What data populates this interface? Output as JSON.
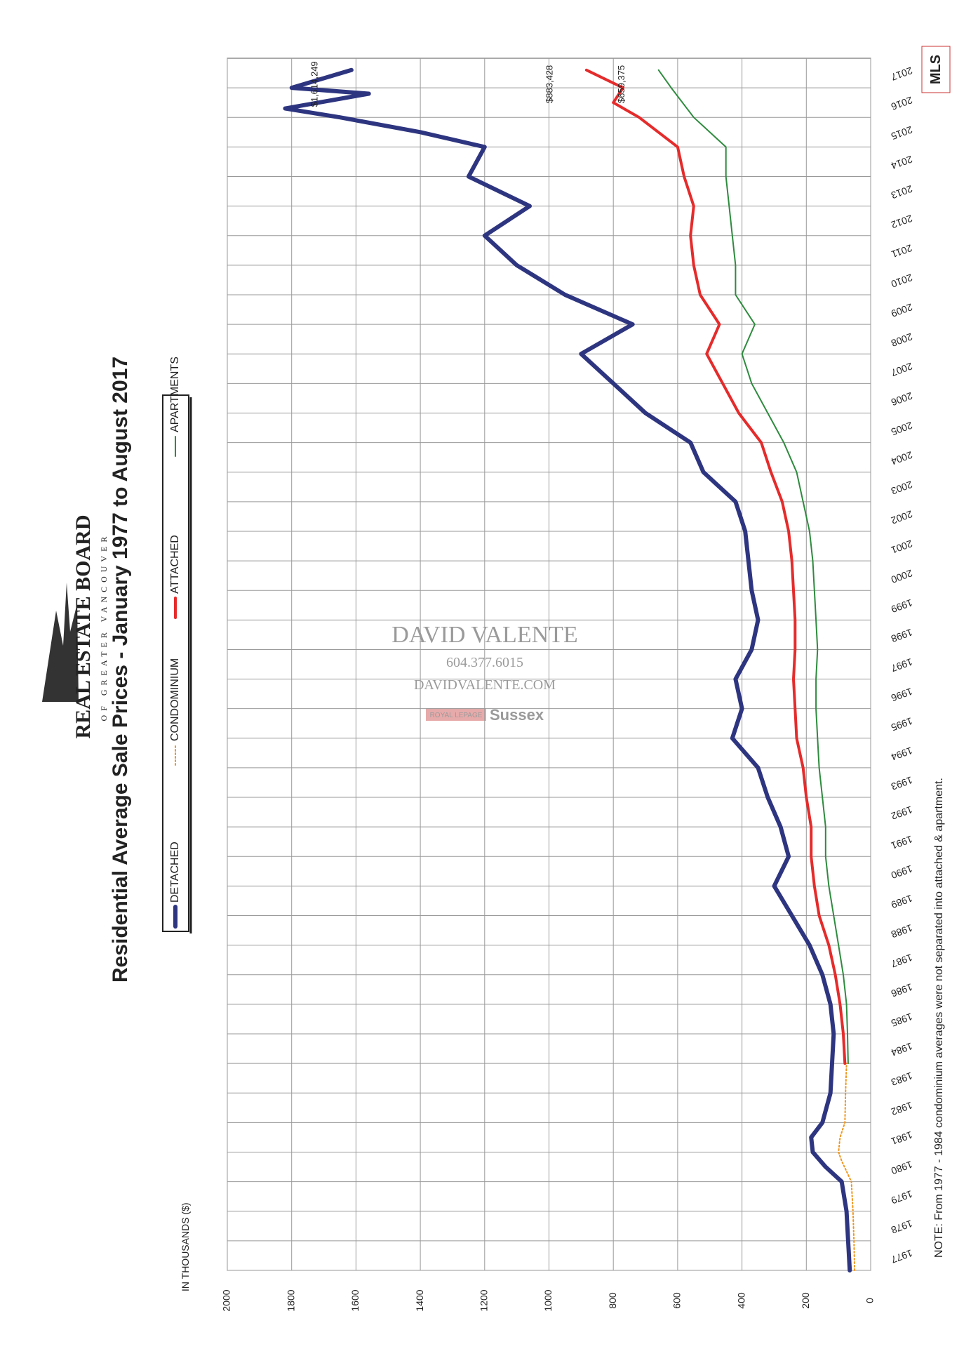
{
  "chart_data": {
    "type": "line",
    "title": "Residential Average Sale Prices  -  January 1977 to August 2017",
    "y_label": "IN THOUSANDS ($)",
    "note": "NOTE:  From 1977 - 1984 condominium averages were not separated into attached & apartment.",
    "logo": {
      "title": "REAL ESTATE BOARD",
      "subtitle": "OF GREATER VANCOUVER",
      "mls": "MLS"
    },
    "watermark": {
      "name": "DAVID VALENTE",
      "phone": "604.377.6015",
      "site": "DAVIDVALENTE.COM",
      "brand": "ROYAL LEPAGE",
      "office": "Sussex"
    },
    "xlim": [
      1977,
      2018
    ],
    "xticks": [
      1977,
      1978,
      1979,
      1980,
      1981,
      1982,
      1983,
      1984,
      1985,
      1986,
      1987,
      1988,
      1989,
      1990,
      1991,
      1992,
      1993,
      1994,
      1995,
      1996,
      1997,
      1998,
      1999,
      2000,
      2001,
      2002,
      2003,
      2004,
      2005,
      2006,
      2007,
      2008,
      2009,
      2010,
      2011,
      2012,
      2013,
      2014,
      2015,
      2016,
      2017
    ],
    "ylim": [
      0,
      2000
    ],
    "yticks": [
      0,
      200,
      400,
      600,
      800,
      1000,
      1200,
      1400,
      1600,
      1800,
      2000
    ],
    "grid": true,
    "series": [
      {
        "name": "DETACHED",
        "color": "#2e3580",
        "width": 6,
        "dash": false,
        "x": [
          1977,
          1978,
          1979,
          1980,
          1980.5,
          1981,
          1981.5,
          1982,
          1983,
          1984,
          1985,
          1986,
          1987,
          1988,
          1989,
          1990,
          1991,
          1992,
          1993,
          1994,
          1995,
          1996,
          1997,
          1998,
          1999,
          2000,
          2001,
          2002,
          2003,
          2004,
          2005,
          2006,
          2007,
          2008,
          2009,
          2010,
          2011,
          2012,
          2013,
          2014,
          2015,
          2015.5,
          2016,
          2016.3,
          2016.8,
          2017,
          2017.6
        ],
        "values": [
          65,
          70,
          75,
          90,
          140,
          180,
          185,
          150,
          125,
          120,
          115,
          125,
          150,
          190,
          245,
          300,
          255,
          280,
          320,
          350,
          430,
          400,
          420,
          370,
          350,
          370,
          380,
          390,
          420,
          520,
          560,
          700,
          800,
          900,
          740,
          950,
          1100,
          1200,
          1060,
          1250,
          1200,
          1400,
          1650,
          1820,
          1560,
          1800,
          1614.249
        ],
        "value_labels": [
          null,
          null,
          null,
          null,
          null,
          null,
          null,
          null,
          null,
          null,
          null,
          null,
          null,
          null,
          null,
          null,
          null,
          null,
          null,
          null,
          null,
          null,
          null,
          null,
          null,
          null,
          null,
          null,
          null,
          null,
          null,
          null,
          null,
          null,
          null,
          null,
          null,
          null,
          null,
          null,
          null,
          null,
          null,
          null,
          null,
          null,
          "$1,614,249"
        ]
      },
      {
        "name": "CONDOMINIUM",
        "color": "#f0961e",
        "width": 2,
        "dash": true,
        "x": [
          1977,
          1978,
          1979,
          1980,
          1980.7,
          1981,
          1981.5,
          1982,
          1983,
          1984
        ],
        "values": [
          50,
          52,
          55,
          60,
          90,
          100,
          95,
          80,
          78,
          75
        ]
      },
      {
        "name": "ATTACHED",
        "color": "#e52b2b",
        "width": 4,
        "dash": false,
        "x": [
          1984,
          1985,
          1986,
          1987,
          1988,
          1989,
          1990,
          1991,
          1992,
          1993,
          1994,
          1995,
          1996,
          1997,
          1998,
          1999,
          2000,
          2001,
          2002,
          2003,
          2004,
          2005,
          2006,
          2007,
          2008,
          2009,
          2010,
          2011,
          2012,
          2013,
          2014,
          2015,
          2016,
          2016.5,
          2017,
          2017.6
        ],
        "values": [
          80,
          85,
          95,
          110,
          130,
          160,
          175,
          185,
          185,
          200,
          210,
          230,
          235,
          240,
          235,
          235,
          240,
          245,
          255,
          275,
          310,
          340,
          410,
          460,
          510,
          470,
          530,
          550,
          560,
          550,
          580,
          600,
          720,
          800,
          770,
          883.428
        ],
        "value_labels": [
          null,
          null,
          null,
          null,
          null,
          null,
          null,
          null,
          null,
          null,
          null,
          null,
          null,
          null,
          null,
          null,
          null,
          null,
          null,
          null,
          null,
          null,
          null,
          null,
          null,
          null,
          null,
          null,
          null,
          null,
          null,
          null,
          null,
          null,
          null,
          "$883,428"
        ]
      },
      {
        "name": "APARTMENTS",
        "color": "#2e8b3e",
        "width": 2,
        "dash": false,
        "x": [
          1984,
          1985,
          1986,
          1987,
          1988,
          1989,
          1990,
          1991,
          1992,
          1993,
          1994,
          1995,
          1996,
          1997,
          1998,
          1999,
          2000,
          2001,
          2002,
          2003,
          2004,
          2005,
          2006,
          2007,
          2008,
          2009,
          2010,
          2011,
          2012,
          2013,
          2014,
          2015,
          2016,
          2017,
          2017.6
        ],
        "values": [
          70,
          72,
          75,
          85,
          100,
          115,
          130,
          140,
          140,
          150,
          160,
          165,
          170,
          170,
          165,
          170,
          175,
          180,
          190,
          210,
          230,
          270,
          320,
          370,
          400,
          360,
          420,
          420,
          430,
          440,
          450,
          450,
          550,
          620,
          659.375
        ],
        "value_labels": [
          null,
          null,
          null,
          null,
          null,
          null,
          null,
          null,
          null,
          null,
          null,
          null,
          null,
          null,
          null,
          null,
          null,
          null,
          null,
          null,
          null,
          null,
          null,
          null,
          null,
          null,
          null,
          null,
          null,
          null,
          null,
          null,
          null,
          null,
          "$659,375"
        ]
      }
    ]
  }
}
